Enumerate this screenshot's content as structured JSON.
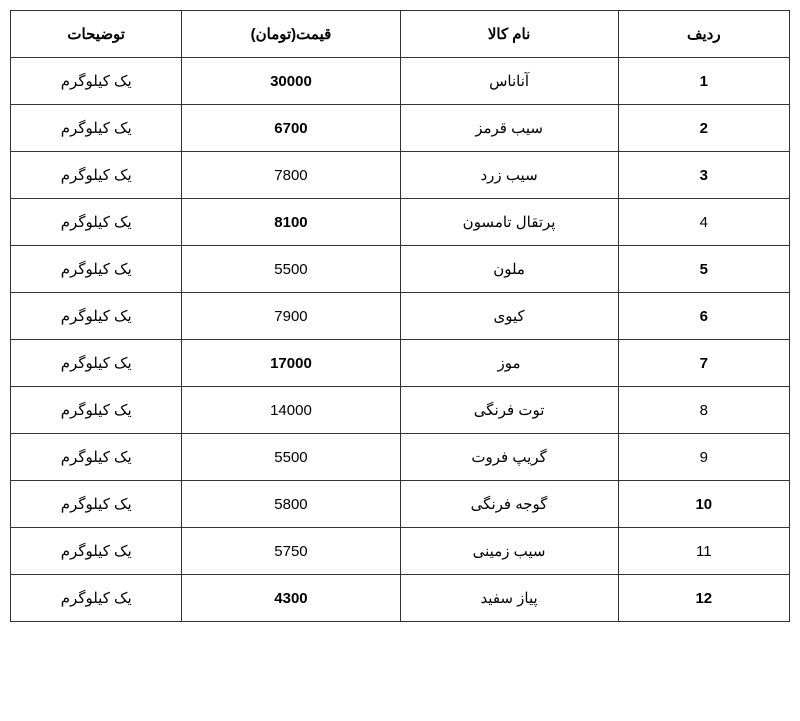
{
  "table": {
    "columns": [
      "ردیف",
      "نام کالا",
      "قیمت(تومان)",
      "توضیحات"
    ],
    "col_widths_pct": [
      22,
      28,
      28,
      22
    ],
    "border_color": "#333333",
    "background_color": "#ffffff",
    "text_color": "#000000",
    "header_fontsize": 15,
    "cell_fontsize": 15,
    "rows": [
      {
        "index": "1",
        "name": "آناناس",
        "price": "30000",
        "desc": "یک کیلوگرم",
        "index_bold": true,
        "price_bold": true
      },
      {
        "index": "2",
        "name": "سیب قرمز",
        "price": "6700",
        "desc": "یک کیلوگرم",
        "index_bold": true,
        "price_bold": true
      },
      {
        "index": "3",
        "name": "سیب زرد",
        "price": "7800",
        "desc": "یک کیلوگرم",
        "index_bold": true,
        "price_bold": false
      },
      {
        "index": "4",
        "name": "پرتقال تامسون",
        "price": "8100",
        "desc": "یک کیلوگرم",
        "index_bold": false,
        "price_bold": true
      },
      {
        "index": "5",
        "name": "ملون",
        "price": "5500",
        "desc": "یک کیلوگرم",
        "index_bold": true,
        "price_bold": false
      },
      {
        "index": "6",
        "name": "کیوی",
        "price": "7900",
        "desc": "یک کیلوگرم",
        "index_bold": true,
        "price_bold": false
      },
      {
        "index": "7",
        "name": "موز",
        "price": "17000",
        "desc": "یک کیلوگرم",
        "index_bold": true,
        "price_bold": true
      },
      {
        "index": "8",
        "name": "توت فرنگی",
        "price": "14000",
        "desc": "یک کیلوگرم",
        "index_bold": false,
        "price_bold": false
      },
      {
        "index": "9",
        "name": "گریپ فروت",
        "price": "5500",
        "desc": "یک کیلوگرم",
        "index_bold": false,
        "price_bold": false
      },
      {
        "index": "10",
        "name": "گوجه فرنگی",
        "price": "5800",
        "desc": "یک کیلوگرم",
        "index_bold": true,
        "price_bold": false
      },
      {
        "index": "11",
        "name": "سیب زمینی",
        "price": "5750",
        "desc": "یک کیلوگرم",
        "index_bold": false,
        "price_bold": false
      },
      {
        "index": "12",
        "name": "پیاز سفید",
        "price": "4300",
        "desc": "یک کیلوگرم",
        "index_bold": true,
        "price_bold": true
      }
    ]
  }
}
